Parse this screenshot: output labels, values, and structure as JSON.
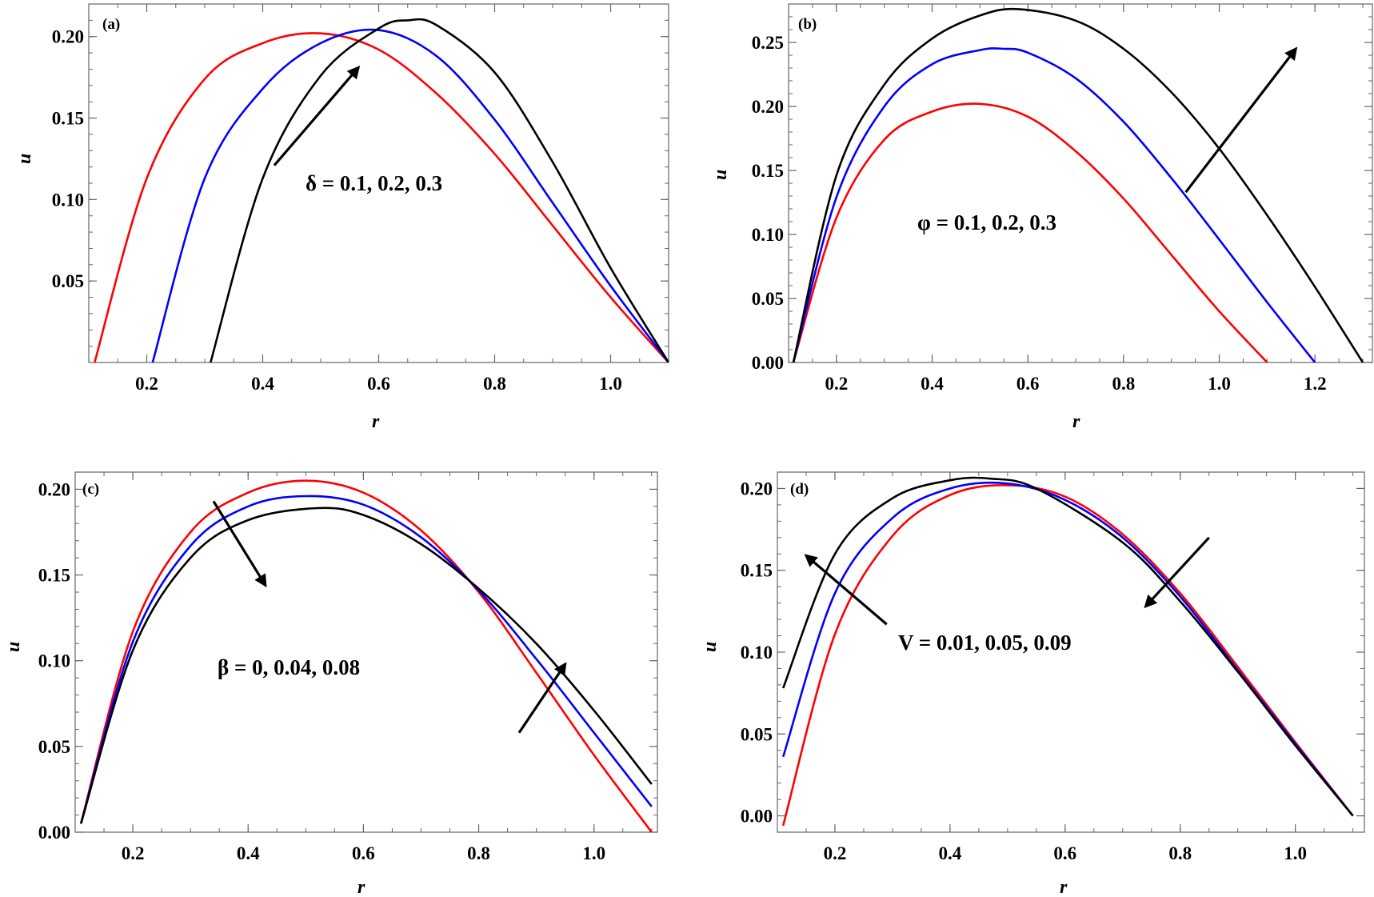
{
  "chart_data": [
    {
      "id": "a",
      "type": "line",
      "panel_label": "(a)",
      "xlabel": "r",
      "ylabel": "u",
      "xlim": [
        0.1,
        1.1
      ],
      "ylim": [
        0.0,
        0.22
      ],
      "xticks": [
        0.2,
        0.4,
        0.6,
        0.8,
        1.0
      ],
      "xtick_labels": [
        "0.2",
        "0.4",
        "0.6",
        "0.8",
        "1.0"
      ],
      "yticks": [
        0.05,
        0.1,
        0.15,
        0.2
      ],
      "ytick_labels": [
        "0.05",
        "0.10",
        "0.15",
        "0.20"
      ],
      "annotation": "δ = 0.1,  0.2,  0.3",
      "series": [
        {
          "color": "#ff0000",
          "points": [
            [
              0.11,
              0.0
            ],
            [
              0.2,
              0.113
            ],
            [
              0.3,
              0.174
            ],
            [
              0.4,
              0.196
            ],
            [
              0.5,
              0.202
            ],
            [
              0.6,
              0.192
            ],
            [
              0.7,
              0.165
            ],
            [
              0.8,
              0.128
            ],
            [
              0.9,
              0.084
            ],
            [
              1.0,
              0.04
            ],
            [
              1.1,
              0.0
            ]
          ]
        },
        {
          "color": "#0000ff",
          "points": [
            [
              0.21,
              0.0
            ],
            [
              0.3,
              0.113
            ],
            [
              0.4,
              0.168
            ],
            [
              0.5,
              0.196
            ],
            [
              0.6,
              0.204
            ],
            [
              0.7,
              0.188
            ],
            [
              0.8,
              0.149
            ],
            [
              0.9,
              0.098
            ],
            [
              1.0,
              0.047
            ],
            [
              1.1,
              0.0
            ]
          ]
        },
        {
          "color": "#000000",
          "points": [
            [
              0.31,
              0.0
            ],
            [
              0.4,
              0.113
            ],
            [
              0.5,
              0.176
            ],
            [
              0.6,
              0.205
            ],
            [
              0.65,
              0.21
            ],
            [
              0.7,
              0.207
            ],
            [
              0.8,
              0.178
            ],
            [
              0.9,
              0.123
            ],
            [
              1.0,
              0.058
            ],
            [
              1.1,
              0.0
            ]
          ]
        }
      ],
      "arrows": [
        {
          "from": [
            0.42,
            0.121
          ],
          "to": [
            0.565,
            0.181
          ]
        }
      ]
    },
    {
      "id": "b",
      "type": "line",
      "panel_label": "(b)",
      "xlabel": "r",
      "ylabel": "u",
      "xlim": [
        0.1,
        1.32
      ],
      "ylim": [
        0.0,
        0.28
      ],
      "xticks": [
        0.2,
        0.4,
        0.6,
        0.8,
        1.0,
        1.2
      ],
      "xtick_labels": [
        "0.2",
        "0.4",
        "0.6",
        "0.8",
        "1.0",
        "1.2"
      ],
      "yticks": [
        0.0,
        0.05,
        0.1,
        0.15,
        0.2,
        0.25
      ],
      "ytick_labels": [
        "0.00",
        "0.05",
        "0.10",
        "0.15",
        "0.20",
        "0.25"
      ],
      "annotation": "φ = 0.1,  0.2,  0.3",
      "series": [
        {
          "color": "#ff0000",
          "points": [
            [
              0.11,
              0.0
            ],
            [
              0.2,
              0.113
            ],
            [
              0.3,
              0.174
            ],
            [
              0.4,
              0.196
            ],
            [
              0.5,
              0.202
            ],
            [
              0.6,
              0.192
            ],
            [
              0.7,
              0.165
            ],
            [
              0.8,
              0.128
            ],
            [
              0.9,
              0.084
            ],
            [
              1.0,
              0.04
            ],
            [
              1.1,
              0.0
            ]
          ]
        },
        {
          "color": "#0000ff",
          "points": [
            [
              0.11,
              0.0
            ],
            [
              0.2,
              0.129
            ],
            [
              0.3,
              0.2
            ],
            [
              0.4,
              0.233
            ],
            [
              0.5,
              0.244
            ],
            [
              0.55,
              0.245
            ],
            [
              0.6,
              0.242
            ],
            [
              0.7,
              0.222
            ],
            [
              0.8,
              0.188
            ],
            [
              0.9,
              0.144
            ],
            [
              1.0,
              0.096
            ],
            [
              1.1,
              0.047
            ],
            [
              1.2,
              0.0
            ]
          ]
        },
        {
          "color": "#000000",
          "points": [
            [
              0.11,
              0.0
            ],
            [
              0.2,
              0.146
            ],
            [
              0.3,
              0.217
            ],
            [
              0.4,
              0.253
            ],
            [
              0.5,
              0.271
            ],
            [
              0.58,
              0.276
            ],
            [
              0.7,
              0.267
            ],
            [
              0.8,
              0.245
            ],
            [
              0.9,
              0.211
            ],
            [
              1.0,
              0.167
            ],
            [
              1.1,
              0.115
            ],
            [
              1.2,
              0.059
            ],
            [
              1.3,
              0.0
            ]
          ]
        }
      ],
      "arrows": [
        {
          "from": [
            0.93,
            0.133
          ],
          "to": [
            1.16,
            0.245
          ]
        }
      ]
    },
    {
      "id": "c",
      "type": "line",
      "panel_label": "(c)",
      "xlabel": "r",
      "ylabel": "u",
      "xlim": [
        0.1,
        1.11
      ],
      "ylim": [
        0.0,
        0.21
      ],
      "xticks": [
        0.2,
        0.4,
        0.6,
        0.8,
        1.0
      ],
      "xtick_labels": [
        "0.2",
        "0.4",
        "0.6",
        "0.8",
        "1.0"
      ],
      "yticks": [
        0.0,
        0.05,
        0.1,
        0.15,
        0.2
      ],
      "ytick_labels": [
        "0.00",
        "0.05",
        "0.10",
        "0.15",
        "0.20"
      ],
      "annotation": "β = 0,  0.04,  0.08",
      "series": [
        {
          "color": "#ff0000",
          "points": [
            [
              0.11,
              0.005
            ],
            [
              0.2,
              0.117
            ],
            [
              0.3,
              0.175
            ],
            [
              0.4,
              0.198
            ],
            [
              0.5,
              0.205
            ],
            [
              0.6,
              0.198
            ],
            [
              0.7,
              0.176
            ],
            [
              0.8,
              0.14
            ],
            [
              0.9,
              0.093
            ],
            [
              1.0,
              0.045
            ],
            [
              1.1,
              0.0
            ]
          ]
        },
        {
          "color": "#0000ff",
          "points": [
            [
              0.11,
              0.005
            ],
            [
              0.2,
              0.111
            ],
            [
              0.3,
              0.167
            ],
            [
              0.4,
              0.19
            ],
            [
              0.5,
              0.196
            ],
            [
              0.6,
              0.191
            ],
            [
              0.7,
              0.172
            ],
            [
              0.8,
              0.141
            ],
            [
              0.9,
              0.101
            ],
            [
              1.0,
              0.058
            ],
            [
              1.1,
              0.015
            ]
          ]
        },
        {
          "color": "#000000",
          "points": [
            [
              0.11,
              0.005
            ],
            [
              0.2,
              0.106
            ],
            [
              0.3,
              0.16
            ],
            [
              0.4,
              0.182
            ],
            [
              0.52,
              0.189
            ],
            [
              0.6,
              0.185
            ],
            [
              0.7,
              0.168
            ],
            [
              0.8,
              0.142
            ],
            [
              0.9,
              0.11
            ],
            [
              1.0,
              0.071
            ],
            [
              1.1,
              0.028
            ]
          ]
        }
      ],
      "arrows": [
        {
          "from": [
            0.34,
            0.193
          ],
          "to": [
            0.43,
            0.144
          ]
        },
        {
          "from": [
            0.87,
            0.058
          ],
          "to": [
            0.95,
            0.098
          ]
        }
      ]
    },
    {
      "id": "d",
      "type": "line",
      "panel_label": "(d)",
      "xlabel": "r",
      "ylabel": "u",
      "xlim": [
        0.1,
        1.12
      ],
      "ylim": [
        -0.01,
        0.21
      ],
      "xticks": [
        0.2,
        0.4,
        0.6,
        0.8,
        1.0
      ],
      "xtick_labels": [
        "0.2",
        "0.4",
        "0.6",
        "0.8",
        "1.0"
      ],
      "yticks": [
        0.0,
        0.05,
        0.1,
        0.15,
        0.2
      ],
      "ytick_labels": [
        "0.00",
        "0.05",
        "0.10",
        "0.15",
        "0.20"
      ],
      "annotation": "V = 0.01,  0.05,  0.09",
      "series": [
        {
          "color": "#ff0000",
          "points": [
            [
              0.11,
              -0.006
            ],
            [
              0.2,
              0.111
            ],
            [
              0.3,
              0.171
            ],
            [
              0.4,
              0.196
            ],
            [
              0.5,
              0.202
            ],
            [
              0.6,
              0.195
            ],
            [
              0.7,
              0.172
            ],
            [
              0.8,
              0.136
            ],
            [
              0.9,
              0.091
            ],
            [
              1.0,
              0.045
            ],
            [
              1.1,
              0.0
            ]
          ]
        },
        {
          "color": "#0000ff",
          "points": [
            [
              0.11,
              0.036
            ],
            [
              0.2,
              0.136
            ],
            [
              0.3,
              0.182
            ],
            [
              0.4,
              0.2
            ],
            [
              0.5,
              0.203
            ],
            [
              0.6,
              0.193
            ],
            [
              0.7,
              0.17
            ],
            [
              0.8,
              0.134
            ],
            [
              0.9,
              0.089
            ],
            [
              1.0,
              0.044
            ],
            [
              1.1,
              0.0
            ]
          ]
        },
        {
          "color": "#000000",
          "points": [
            [
              0.11,
              0.078
            ],
            [
              0.2,
              0.16
            ],
            [
              0.3,
              0.194
            ],
            [
              0.4,
              0.205
            ],
            [
              0.47,
              0.206
            ],
            [
              0.55,
              0.2
            ],
            [
              0.7,
              0.167
            ],
            [
              0.8,
              0.131
            ],
            [
              0.9,
              0.088
            ],
            [
              1.0,
              0.043
            ],
            [
              1.1,
              0.0
            ]
          ]
        }
      ],
      "arrows": [
        {
          "from": [
            0.29,
            0.117
          ],
          "to": [
            0.15,
            0.159
          ]
        },
        {
          "from": [
            0.85,
            0.17
          ],
          "to": [
            0.74,
            0.128
          ]
        }
      ]
    }
  ]
}
